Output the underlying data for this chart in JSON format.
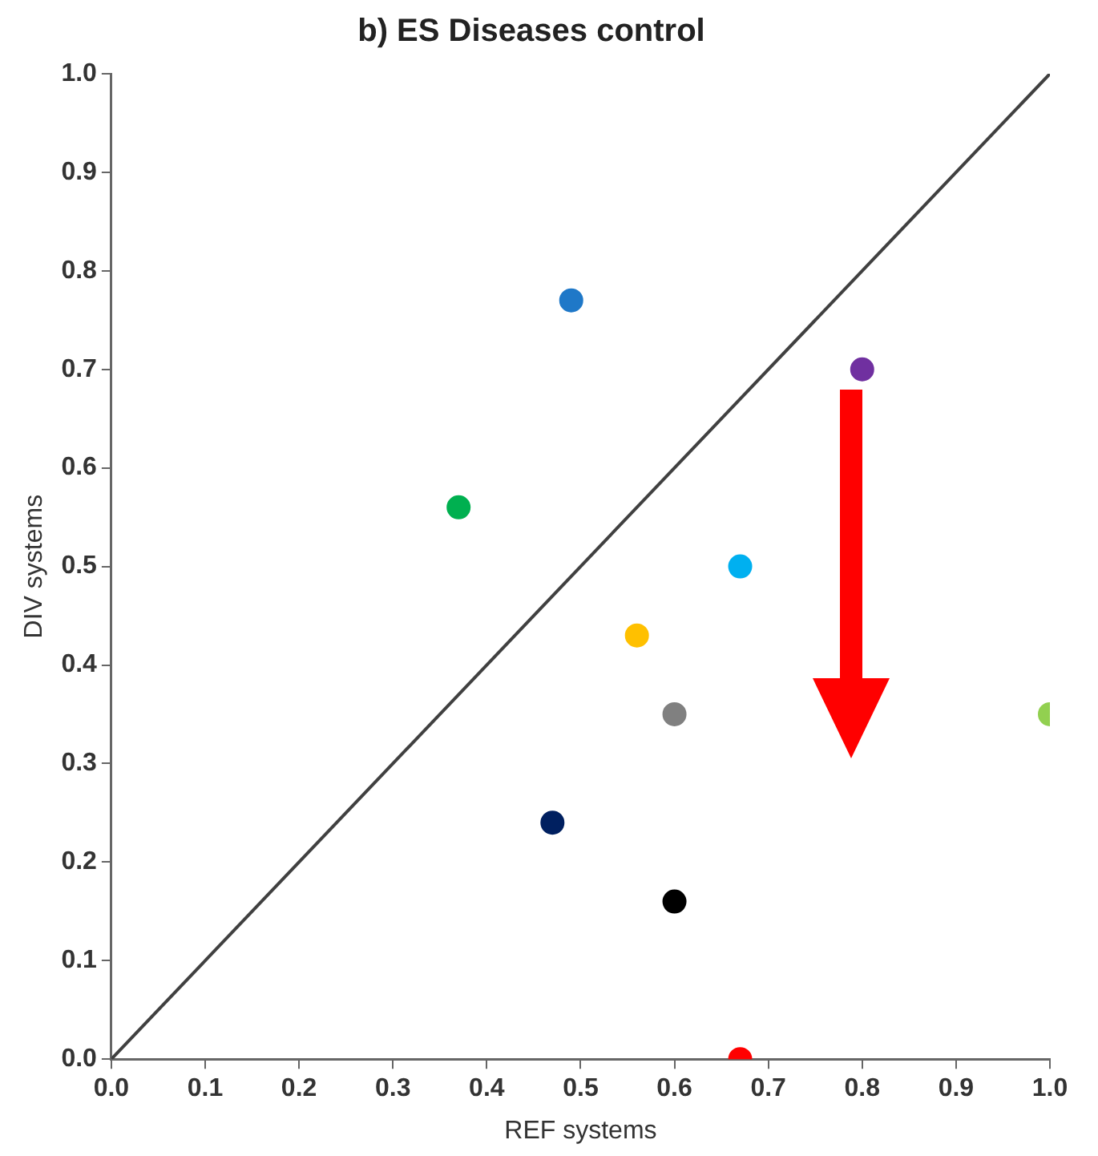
{
  "chart_data": {
    "type": "scatter",
    "title": "b) ES Diseases control",
    "xlabel": "REF systems",
    "ylabel": "DIV systems",
    "xlim": [
      0,
      1
    ],
    "ylim": [
      0,
      1
    ],
    "xticks": [
      {
        "value": 0,
        "label": "0.0"
      },
      {
        "value": 0.1,
        "label": "0.1"
      },
      {
        "value": 0.2,
        "label": "0.2"
      },
      {
        "value": 0.3,
        "label": "0.3"
      },
      {
        "value": 0.4,
        "label": "0.4"
      },
      {
        "value": 0.5,
        "label": "0.5"
      },
      {
        "value": 0.6,
        "label": "0.6"
      },
      {
        "value": 0.7,
        "label": "0.7"
      },
      {
        "value": 0.8,
        "label": "0.8"
      },
      {
        "value": 0.9,
        "label": "0.9"
      },
      {
        "value": 1,
        "label": "1.0"
      }
    ],
    "yticks": [
      {
        "value": 0,
        "label": "0.0"
      },
      {
        "value": 0.1,
        "label": "0.1"
      },
      {
        "value": 0.2,
        "label": "0.2"
      },
      {
        "value": 0.3,
        "label": "0.3"
      },
      {
        "value": 0.4,
        "label": "0.4"
      },
      {
        "value": 0.5,
        "label": "0.5"
      },
      {
        "value": 0.6,
        "label": "0.6"
      },
      {
        "value": 0.7,
        "label": "0.7"
      },
      {
        "value": 0.8,
        "label": "0.8"
      },
      {
        "value": 0.9,
        "label": "0.9"
      },
      {
        "value": 1,
        "label": "1.0"
      }
    ],
    "grid": false,
    "legend": false,
    "series": [
      {
        "marker": "circle",
        "x": [
          0.49,
          0.8,
          0.37,
          0.67,
          0.56,
          0.6,
          1.0,
          0.47,
          0.6,
          0.67
        ],
        "values": [
          0.77,
          0.7,
          0.56,
          0.5,
          0.43,
          0.35,
          0.35,
          0.24,
          0.16,
          0.0
        ],
        "colors": [
          "#1f78c8",
          "#7030a0",
          "#00b050",
          "#00b0f0",
          "#ffc000",
          "#808080",
          "#92d050",
          "#002060",
          "#000000",
          "#ff0000"
        ]
      },
      {
        "type": "line",
        "x": [
          0,
          1
        ],
        "values": [
          0,
          1
        ],
        "color": "#404040",
        "line_style": "solid",
        "marker": "none"
      }
    ]
  }
}
